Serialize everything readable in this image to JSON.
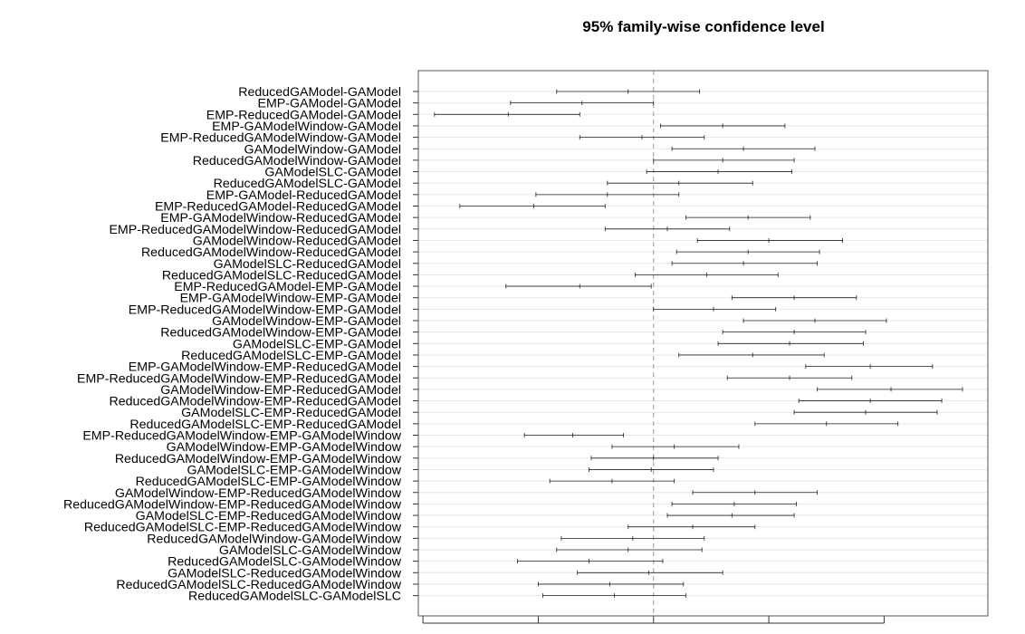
{
  "chart_data": {
    "type": "interval",
    "title": "95% family-wise confidence level",
    "xlim": [
      -1.02,
      1.45
    ],
    "x_ticks": [
      -1.0,
      -0.5,
      0.0,
      0.5,
      1.0
    ],
    "reference_line": 0,
    "grid": true,
    "comparisons": [
      {
        "label": "ReducedGAModel-GAModel",
        "lwr": -0.42,
        "est": -0.11,
        "upr": 0.2
      },
      {
        "label": "EMP-GAModel-GAModel",
        "lwr": -0.62,
        "est": -0.31,
        "upr": 0.0
      },
      {
        "label": "EMP-ReducedGAModel-GAModel",
        "lwr": -0.95,
        "est": -0.63,
        "upr": -0.32
      },
      {
        "label": "EMP-GAModelWindow-GAModel",
        "lwr": 0.03,
        "est": 0.3,
        "upr": 0.57
      },
      {
        "label": "EMP-ReducedGAModelWindow-GAModel",
        "lwr": -0.32,
        "est": -0.05,
        "upr": 0.22
      },
      {
        "label": "GAModelWindow-GAModel",
        "lwr": 0.08,
        "est": 0.39,
        "upr": 0.7
      },
      {
        "label": "ReducedGAModelWindow-GAModel",
        "lwr": 0.0,
        "est": 0.3,
        "upr": 0.61
      },
      {
        "label": "GAModelSLC-GAModel",
        "lwr": -0.03,
        "est": 0.28,
        "upr": 0.6
      },
      {
        "label": "ReducedGAModelSLC-GAModel",
        "lwr": -0.2,
        "est": 0.11,
        "upr": 0.43
      },
      {
        "label": "EMP-GAModel-ReducedGAModel",
        "lwr": -0.51,
        "est": -0.2,
        "upr": 0.11
      },
      {
        "label": "EMP-ReducedGAModel-ReducedGAModel",
        "lwr": -0.84,
        "est": -0.52,
        "upr": -0.21
      },
      {
        "label": "EMP-GAModelWindow-ReducedGAModel",
        "lwr": 0.14,
        "est": 0.41,
        "upr": 0.68
      },
      {
        "label": "EMP-ReducedGAModelWindow-ReducedGAModel",
        "lwr": -0.21,
        "est": 0.06,
        "upr": 0.33
      },
      {
        "label": "GAModelWindow-ReducedGAModel",
        "lwr": 0.19,
        "est": 0.5,
        "upr": 0.82
      },
      {
        "label": "ReducedGAModelWindow-ReducedGAModel",
        "lwr": 0.1,
        "est": 0.41,
        "upr": 0.72
      },
      {
        "label": "GAModelSLC-ReducedGAModel",
        "lwr": 0.08,
        "est": 0.39,
        "upr": 0.71
      },
      {
        "label": "ReducedGAModelSLC-ReducedGAModel",
        "lwr": -0.08,
        "est": 0.23,
        "upr": 0.54
      },
      {
        "label": "EMP-ReducedGAModel-EMP-GAModel",
        "lwr": -0.64,
        "est": -0.32,
        "upr": -0.01
      },
      {
        "label": "EMP-GAModelWindow-EMP-GAModel",
        "lwr": 0.34,
        "est": 0.61,
        "upr": 0.88
      },
      {
        "label": "EMP-ReducedGAModelWindow-EMP-GAModel",
        "lwr": 0.0,
        "est": 0.26,
        "upr": 0.53
      },
      {
        "label": "GAModelWindow-EMP-GAModel",
        "lwr": 0.39,
        "est": 0.7,
        "upr": 1.01
      },
      {
        "label": "ReducedGAModelWindow-EMP-GAModel",
        "lwr": 0.3,
        "est": 0.61,
        "upr": 0.92
      },
      {
        "label": "GAModelSLC-EMP-GAModel",
        "lwr": 0.28,
        "est": 0.59,
        "upr": 0.91
      },
      {
        "label": "ReducedGAModelSLC-EMP-GAModel",
        "lwr": 0.11,
        "est": 0.43,
        "upr": 0.74
      },
      {
        "label": "EMP-GAModelWindow-EMP-ReducedGAModel",
        "lwr": 0.66,
        "est": 0.94,
        "upr": 1.21
      },
      {
        "label": "EMP-ReducedGAModelWindow-EMP-ReducedGAModel",
        "lwr": 0.32,
        "est": 0.59,
        "upr": 0.86
      },
      {
        "label": "GAModelWindow-EMP-ReducedGAModel",
        "lwr": 0.71,
        "est": 1.03,
        "upr": 1.34
      },
      {
        "label": "ReducedGAModelWindow-EMP-ReducedGAModel",
        "lwr": 0.63,
        "est": 0.94,
        "upr": 1.25
      },
      {
        "label": "GAModelSLC-EMP-ReducedGAModel",
        "lwr": 0.61,
        "est": 0.92,
        "upr": 1.23
      },
      {
        "label": "ReducedGAModelSLC-EMP-ReducedGAModel",
        "lwr": 0.44,
        "est": 0.75,
        "upr": 1.06
      },
      {
        "label": "EMP-ReducedGAModelWindow-EMP-GAModelWindow",
        "lwr": -0.56,
        "est": -0.35,
        "upr": -0.13
      },
      {
        "label": "GAModelWindow-EMP-GAModelWindow",
        "lwr": -0.18,
        "est": 0.09,
        "upr": 0.37
      },
      {
        "label": "ReducedGAModelWindow-EMP-GAModelWindow",
        "lwr": -0.27,
        "est": 0.0,
        "upr": 0.28
      },
      {
        "label": "GAModelSLC-EMP-GAModelWindow",
        "lwr": -0.28,
        "est": -0.01,
        "upr": 0.26
      },
      {
        "label": "ReducedGAModelSLC-EMP-GAModelWindow",
        "lwr": -0.45,
        "est": -0.18,
        "upr": 0.09
      },
      {
        "label": "GAModelWindow-EMP-ReducedGAModelWindow",
        "lwr": 0.17,
        "est": 0.44,
        "upr": 0.71
      },
      {
        "label": "ReducedGAModelWindow-EMP-ReducedGAModelWindow",
        "lwr": 0.08,
        "est": 0.35,
        "upr": 0.62
      },
      {
        "label": "GAModelSLC-EMP-ReducedGAModelWindow",
        "lwr": 0.06,
        "est": 0.34,
        "upr": 0.61
      },
      {
        "label": "ReducedGAModelSLC-EMP-ReducedGAModelWindow",
        "lwr": -0.11,
        "est": 0.17,
        "upr": 0.44
      },
      {
        "label": "ReducedGAModelWindow-GAModelWindow",
        "lwr": -0.4,
        "est": -0.09,
        "upr": 0.22
      },
      {
        "label": "GAModelSLC-GAModelWindow",
        "lwr": -0.42,
        "est": -0.11,
        "upr": 0.21
      },
      {
        "label": "ReducedGAModelSLC-GAModelWindow",
        "lwr": -0.59,
        "est": -0.28,
        "upr": 0.04
      },
      {
        "label": "GAModelSLC-ReducedGAModelWindow",
        "lwr": -0.33,
        "est": -0.02,
        "upr": 0.3
      },
      {
        "label": "ReducedGAModelSLC-ReducedGAModelWindow",
        "lwr": -0.5,
        "est": -0.19,
        "upr": 0.13
      },
      {
        "label": "ReducedGAModelSLC-GAModelSLC",
        "lwr": -0.48,
        "est": -0.17,
        "upr": 0.14
      }
    ]
  }
}
